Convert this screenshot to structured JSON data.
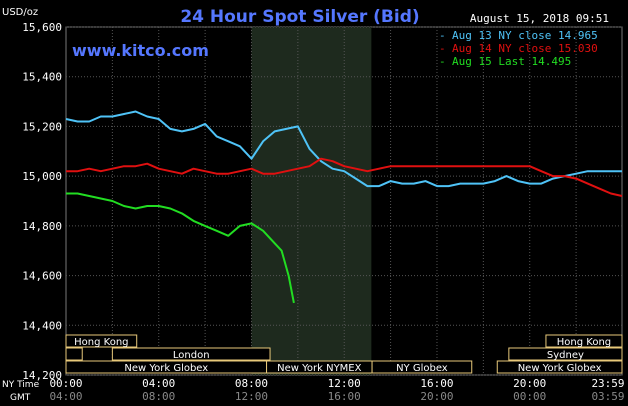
{
  "chart_data": {
    "type": "line",
    "title": "24 Hour Spot Silver (Bid)",
    "ylabel": "USD/oz",
    "timestamp": "August 15, 2018 09:51",
    "watermark": "www.kitco.com",
    "ylim": [
      14.2,
      15.6
    ],
    "yticks": [
      "15,600",
      "15,400",
      "15,200",
      "15,000",
      "14,800",
      "14,600",
      "14,400",
      "14,200"
    ],
    "ytick_values": [
      15.6,
      15.4,
      15.2,
      15.0,
      14.8,
      14.6,
      14.4,
      14.2
    ],
    "x_row_labels": {
      "ny": "NY Time",
      "gmt": "GMT"
    },
    "xticks_ny": [
      "00:00",
      "04:00",
      "08:00",
      "12:00",
      "16:00",
      "20:00",
      "23:59"
    ],
    "xticks_gmt": [
      "04:00",
      "08:00",
      "12:00",
      "16:00",
      "20:00",
      "00:00",
      "03:59"
    ],
    "xtick_hours": [
      0,
      4,
      8,
      12,
      16,
      20,
      23.98
    ],
    "shaded_hours": [
      8,
      13.17
    ],
    "grid": true,
    "legend_position": "top-right",
    "series": [
      {
        "name": "Aug 13 NY close 14.965",
        "color": "#4fc3f7",
        "x": [
          0,
          0.5,
          1,
          1.5,
          2,
          2.5,
          3,
          3.5,
          4,
          4.5,
          5,
          5.5,
          6,
          6.5,
          7,
          7.5,
          8,
          8.5,
          9,
          9.5,
          10,
          10.5,
          11,
          11.5,
          12,
          12.5,
          13,
          13.5,
          14,
          14.5,
          15,
          15.5,
          16,
          16.5,
          17,
          17.5,
          18,
          18.5,
          19,
          19.5,
          20,
          20.5,
          21,
          21.5,
          22,
          22.5,
          23,
          23.5,
          23.98
        ],
        "y": [
          15.23,
          15.22,
          15.22,
          15.24,
          15.24,
          15.25,
          15.26,
          15.24,
          15.23,
          15.19,
          15.18,
          15.19,
          15.21,
          15.16,
          15.14,
          15.12,
          15.07,
          15.14,
          15.18,
          15.19,
          15.2,
          15.11,
          15.06,
          15.03,
          15.02,
          14.99,
          14.96,
          14.96,
          14.98,
          14.97,
          14.97,
          14.98,
          14.96,
          14.96,
          14.97,
          14.97,
          14.97,
          14.98,
          15.0,
          14.98,
          14.97,
          14.97,
          14.99,
          15.0,
          15.01,
          15.02,
          15.02,
          15.02,
          15.02
        ]
      },
      {
        "name": "Aug 14 NY close 15.030",
        "color": "#e01010",
        "x": [
          0,
          0.5,
          1,
          1.5,
          2,
          2.5,
          3,
          3.5,
          4,
          4.5,
          5,
          5.5,
          6,
          6.5,
          7,
          7.5,
          8,
          8.5,
          9,
          9.5,
          10,
          10.5,
          11,
          11.5,
          12,
          12.5,
          13,
          13.5,
          14,
          14.5,
          15,
          15.5,
          16,
          16.5,
          17,
          17.5,
          18,
          18.5,
          19,
          19.5,
          20,
          20.5,
          21,
          21.5,
          22,
          22.5,
          23,
          23.5,
          23.98
        ],
        "y": [
          15.02,
          15.02,
          15.03,
          15.02,
          15.03,
          15.04,
          15.04,
          15.05,
          15.03,
          15.02,
          15.01,
          15.03,
          15.02,
          15.01,
          15.01,
          15.02,
          15.03,
          15.01,
          15.01,
          15.02,
          15.03,
          15.04,
          15.07,
          15.06,
          15.04,
          15.03,
          15.02,
          15.03,
          15.04,
          15.04,
          15.04,
          15.04,
          15.04,
          15.04,
          15.04,
          15.04,
          15.04,
          15.04,
          15.04,
          15.04,
          15.04,
          15.02,
          15.0,
          15.0,
          14.99,
          14.97,
          14.95,
          14.93,
          14.92
        ]
      },
      {
        "name": "Aug 15 Last 14.495",
        "color": "#22dd22",
        "x": [
          0,
          0.5,
          1,
          1.5,
          2,
          2.5,
          3,
          3.5,
          4,
          4.5,
          5,
          5.5,
          6,
          6.5,
          7,
          7.5,
          8,
          8.5,
          9,
          9.3,
          9.6,
          9.83
        ],
        "y": [
          14.93,
          14.93,
          14.92,
          14.91,
          14.9,
          14.88,
          14.87,
          14.88,
          14.88,
          14.87,
          14.85,
          14.82,
          14.8,
          14.78,
          14.76,
          14.8,
          14.81,
          14.78,
          14.73,
          14.7,
          14.6,
          14.49
        ]
      }
    ],
    "market_bands": [
      {
        "label": "Hong Kong",
        "row": 0,
        "start": 0,
        "end": 3.05
      },
      {
        "label": "Hong Kong",
        "row": 0,
        "start": 20.7,
        "end": 23.98
      },
      {
        "label": "",
        "row": 1,
        "start": 0,
        "end": 0.7
      },
      {
        "label": "London",
        "row": 1,
        "start": 2.0,
        "end": 8.8
      },
      {
        "label": "Sydney",
        "row": 1,
        "start": 19.1,
        "end": 23.98
      },
      {
        "label": "New York Globex",
        "row": 2,
        "start": 0,
        "end": 8.65
      },
      {
        "label": "New York NYMEX",
        "row": 2,
        "start": 8.65,
        "end": 13.2
      },
      {
        "label": "NY Globex",
        "row": 2,
        "start": 13.2,
        "end": 17.5
      },
      {
        "label": "New York Globex",
        "row": 2,
        "start": 18.6,
        "end": 23.98
      }
    ]
  }
}
